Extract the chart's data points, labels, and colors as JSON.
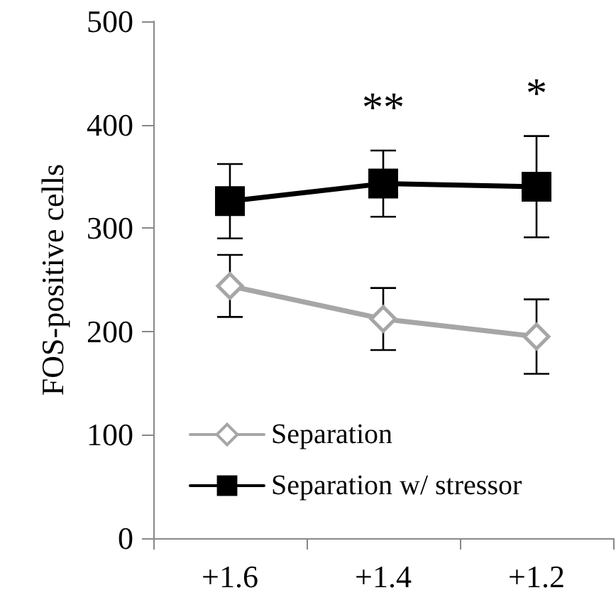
{
  "chart_data": {
    "type": "line",
    "ylabel": "FOS-positive cells",
    "categories": [
      "+1.6",
      "+1.4",
      "+1.2"
    ],
    "series": [
      {
        "name": "Separation",
        "color": "#a6a6a6",
        "marker": "diamond",
        "values": [
          244,
          212,
          195
        ],
        "errors": [
          30,
          30,
          36
        ]
      },
      {
        "name": "Separation w/ stressor",
        "color": "#000000",
        "marker": "square",
        "values": [
          326,
          343,
          340
        ],
        "errors": [
          36,
          32,
          49
        ]
      }
    ],
    "ylim": [
      0,
      500
    ],
    "yticks": [
      0,
      100,
      200,
      300,
      400,
      500
    ],
    "grid": false,
    "legend": "bottom left",
    "annotations": [
      "**",
      "*"
    ]
  }
}
